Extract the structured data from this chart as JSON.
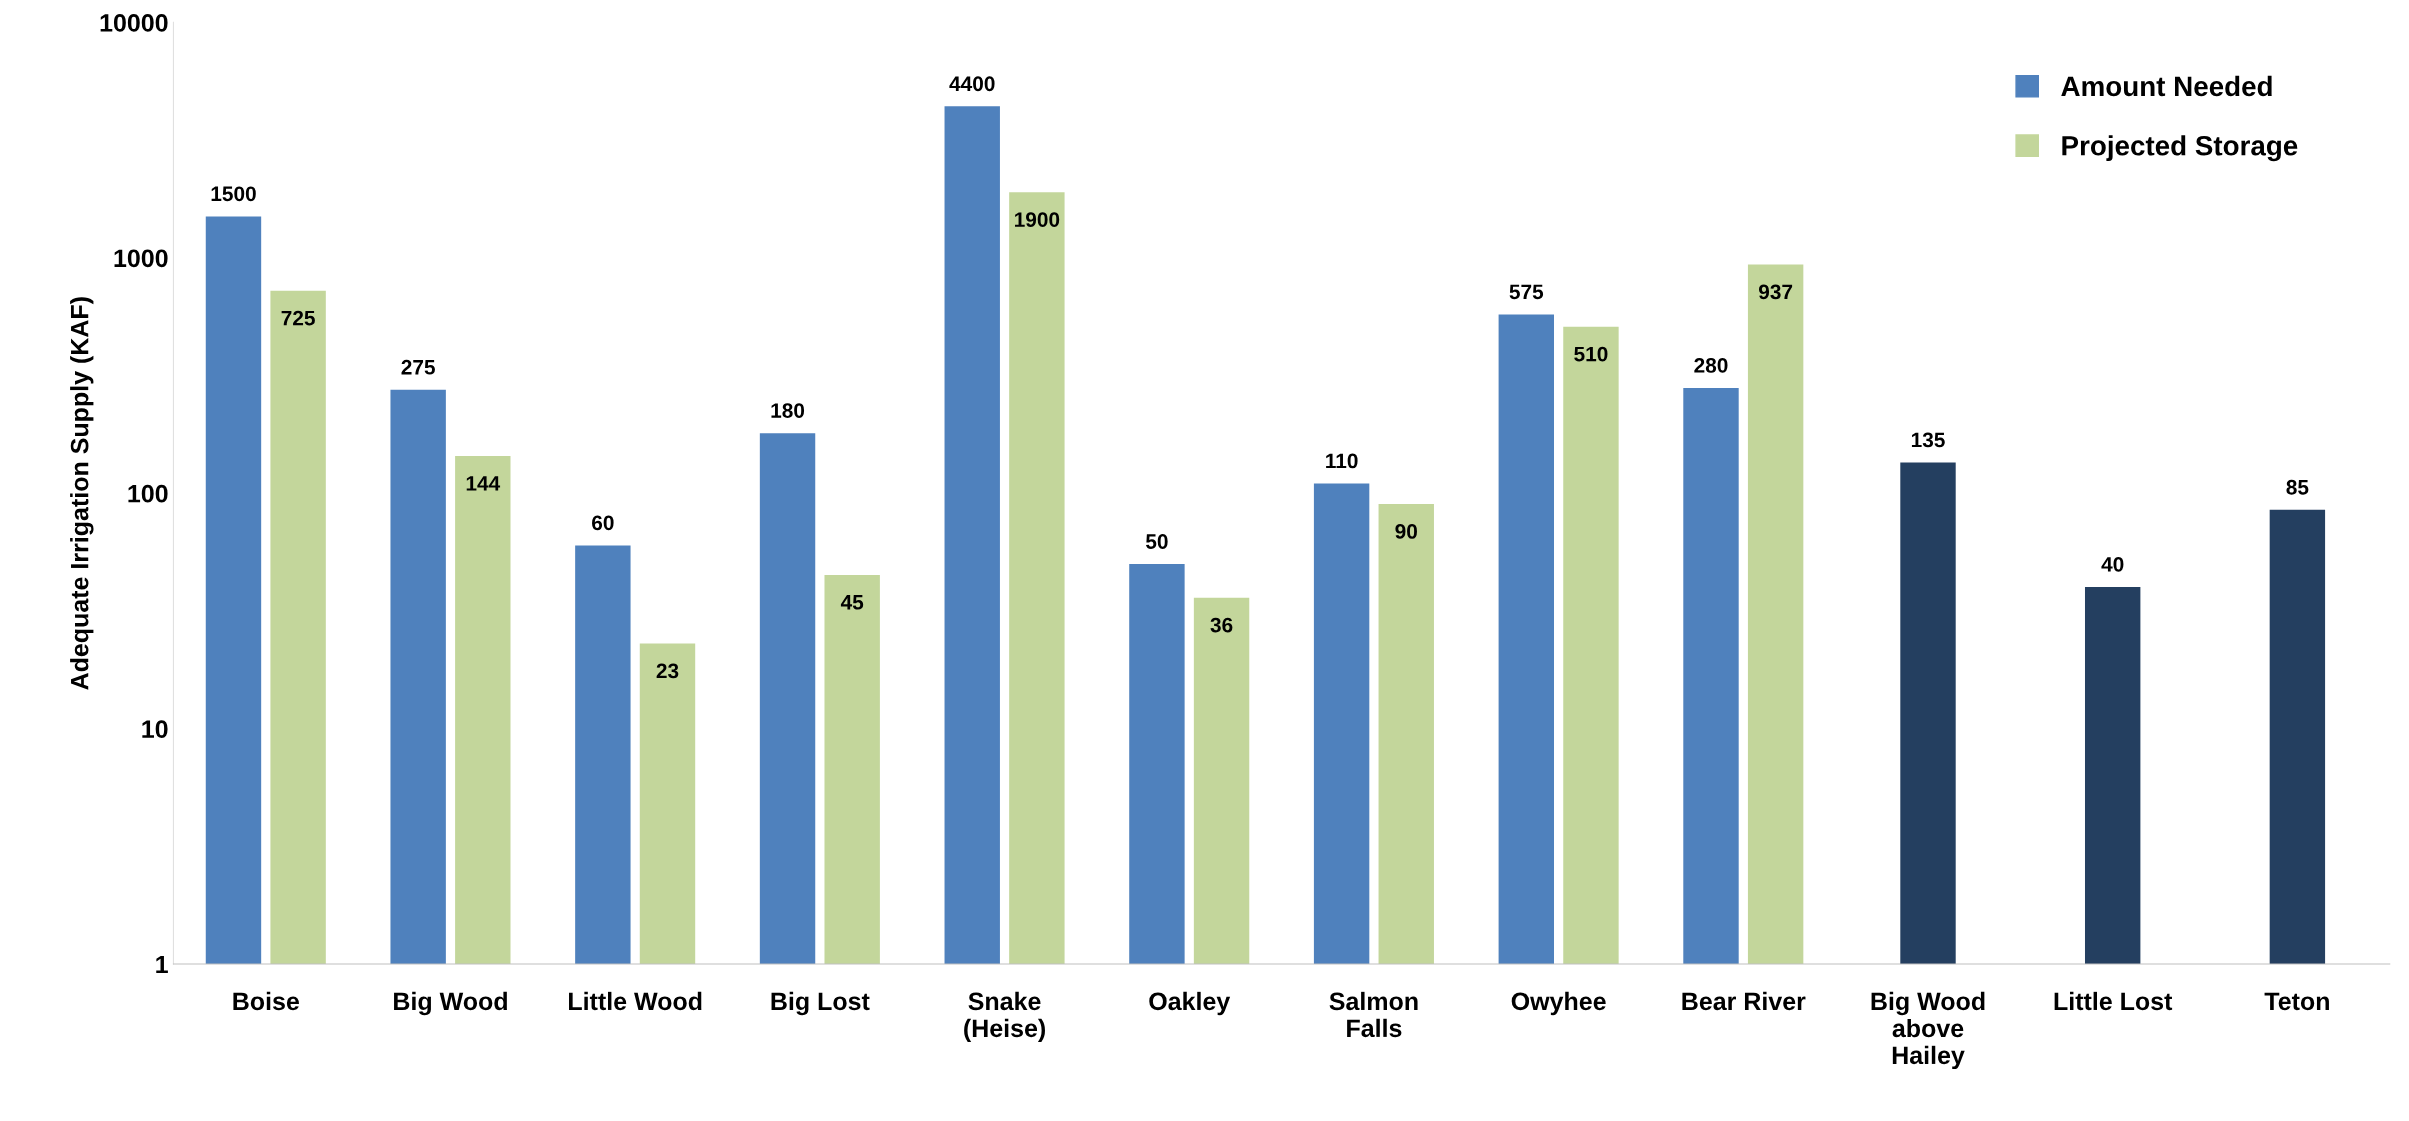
{
  "chart_data": {
    "type": "bar",
    "ylabel": "Adequate Irrigation Supply (KAF)",
    "categories": [
      "Boise",
      "Big Wood",
      "Little Wood",
      "Big Lost",
      "Snake\n(Heise)",
      "Oakley",
      "Salmon\nFalls",
      "Owyhee",
      "Bear River",
      "Big Wood\nabove\nHailey",
      "Little Lost",
      "Teton"
    ],
    "series": [
      {
        "name": "Amount Needed",
        "color": "#4f81bd",
        "colors": [
          "#4f81bd",
          "#4f81bd",
          "#4f81bd",
          "#4f81bd",
          "#4f81bd",
          "#4f81bd",
          "#4f81bd",
          "#4f81bd",
          "#4f81bd",
          "#243f60",
          "#243f60",
          "#243f60"
        ],
        "values": [
          1500,
          275,
          60,
          180,
          4400,
          50,
          110,
          575,
          280,
          135,
          40,
          85
        ]
      },
      {
        "name": "Projected Storage",
        "color": "#c3d69b",
        "values": [
          725,
          144,
          23,
          45,
          1900,
          36,
          90,
          510,
          937,
          null,
          null,
          null
        ]
      }
    ],
    "log": "y",
    "ylim": [
      1,
      10000
    ],
    "yticks": [
      1,
      10,
      100,
      1000,
      10000
    ],
    "grid": false,
    "legend": "top right",
    "data_labels": true
  }
}
